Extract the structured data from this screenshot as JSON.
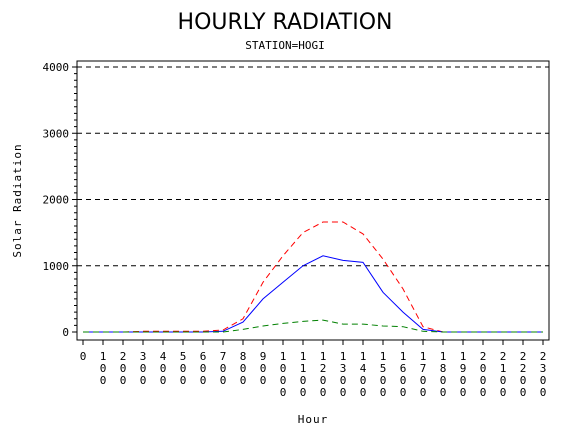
{
  "chart_data": {
    "type": "line",
    "title": "HOURLY RADIATION",
    "subtitle": "STATION=HOGI",
    "xlabel": "Hour",
    "ylabel": "Solar Radiation",
    "x": [
      0,
      100,
      200,
      300,
      400,
      500,
      600,
      700,
      800,
      900,
      1000,
      1100,
      1200,
      1300,
      1400,
      1500,
      1600,
      1700,
      1800,
      1900,
      2000,
      2100,
      2200,
      2300
    ],
    "x_tick_labels": [
      "0",
      "100",
      "200",
      "300",
      "400",
      "500",
      "600",
      "700",
      "800",
      "900",
      "1000",
      "1100",
      "1200",
      "1300",
      "1400",
      "1500",
      "1600",
      "1700",
      "1800",
      "1900",
      "2000",
      "2100",
      "2200",
      "2300"
    ],
    "ylim": [
      0,
      4000
    ],
    "y_ticks": [
      0,
      1000,
      2000,
      3000,
      4000
    ],
    "y_tick_labels": [
      "0",
      "1000",
      "2000",
      "3000",
      "4000"
    ],
    "grid": "horizontal dashed at major y ticks",
    "series": [
      {
        "color": "#ff0000",
        "dash": "dashed",
        "values": [
          0,
          0,
          0,
          10,
          10,
          10,
          10,
          30,
          200,
          750,
          1150,
          1500,
          1660,
          1660,
          1480,
          1100,
          650,
          80,
          0,
          0,
          0,
          0,
          0,
          0
        ]
      },
      {
        "color": "#0000ff",
        "dash": "solid",
        "values": [
          0,
          0,
          0,
          0,
          0,
          0,
          0,
          10,
          150,
          500,
          750,
          1000,
          1150,
          1080,
          1050,
          600,
          300,
          40,
          0,
          0,
          0,
          0,
          0,
          0
        ]
      },
      {
        "color": "#008000",
        "dash": "dashed",
        "values": [
          0,
          0,
          0,
          0,
          0,
          0,
          0,
          0,
          40,
          90,
          130,
          160,
          180,
          120,
          120,
          90,
          80,
          10,
          0,
          0,
          0,
          0,
          0,
          0
        ]
      }
    ]
  }
}
